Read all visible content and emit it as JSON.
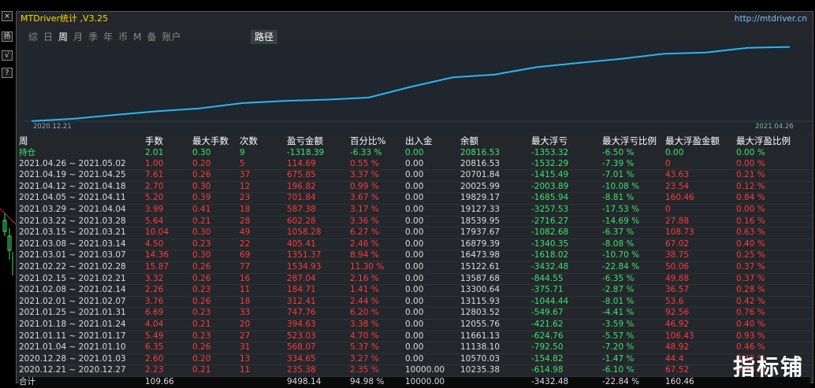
{
  "app": {
    "title": "MTDriver统计 ,V3.25",
    "url": "http://mtdriver.cn"
  },
  "left_buttons": [
    "×",
    "扬",
    "√",
    "?"
  ],
  "tabs": [
    "综",
    "日",
    "周",
    "月",
    "季",
    "年",
    "币",
    "M",
    "备",
    "账户"
  ],
  "active_tab": "周",
  "path_tab": "路径",
  "chart_data": {
    "type": "line",
    "x_labels": [
      "2020.12.21",
      "2021.04.26"
    ],
    "balance": [
      10235.38,
      10570.03,
      11138.1,
      11661.13,
      12055.76,
      12803.52,
      13115.93,
      13300.64,
      13587.68,
      15122.61,
      16473.98,
      16879.39,
      17937.67,
      18539.95,
      19127.33,
      19829.17,
      20025.99,
      20701.84,
      20816.53
    ],
    "color": "#29b6f6"
  },
  "table": {
    "headers": [
      "周",
      "手数",
      "最大手数",
      "次数",
      "盈亏金额",
      "百分比%",
      "出入金",
      "余额",
      "最大浮亏",
      "最大浮亏比例",
      "最大浮盈金额",
      "最大浮盈比例"
    ],
    "holding": [
      "持仓",
      "2.01",
      "0.30",
      "9",
      "-1318.39",
      "-6.33 %",
      "0.00",
      "20816.53",
      "-1353.32",
      "-6.50 %",
      "0.00",
      "0.00 %"
    ],
    "rows": [
      [
        "2021.04.26 ~ 2021.05.02",
        "1.00",
        "0.20",
        "5",
        "114.69",
        "0.55 %",
        "0.00",
        "20816.53",
        "-1532.29",
        "-7.39 %",
        "0",
        "0.00 %"
      ],
      [
        "2021.04.19 ~ 2021.04.25",
        "7.61",
        "0.26",
        "37",
        "675.85",
        "3.37 %",
        "0.00",
        "20701.84",
        "-1415.49",
        "-7.01 %",
        "43.63",
        "0.21 %"
      ],
      [
        "2021.04.12 ~ 2021.04.18",
        "2.70",
        "0.30",
        "12",
        "196.82",
        "0.99 %",
        "0.00",
        "20025.99",
        "-2003.89",
        "-10.08 %",
        "23.54",
        "0.12 %"
      ],
      [
        "2021.04.05 ~ 2021.04.11",
        "5.20",
        "0.39",
        "23",
        "701.84",
        "3.67 %",
        "0.00",
        "19829.17",
        "-1685.94",
        "-8.81 %",
        "160.46",
        "0.84 %"
      ],
      [
        "2021.03.29 ~ 2021.04.04",
        "3.99",
        "0.41",
        "18",
        "587.38",
        "3.17 %",
        "0.00",
        "19127.33",
        "-3257.53",
        "-17.53 %",
        "0",
        "0.00 %"
      ],
      [
        "2021.03.22 ~ 2021.03.28",
        "5.64",
        "0.21",
        "28",
        "602.28",
        "3.36 %",
        "0.00",
        "18539.95",
        "-2716.27",
        "-14.69 %",
        "27.88",
        "0.16 %"
      ],
      [
        "2021.03.15 ~ 2021.03.21",
        "10.04",
        "0.30",
        "49",
        "1058.28",
        "6.27 %",
        "0.00",
        "17937.67",
        "-1082.68",
        "-6.37 %",
        "108.73",
        "0.63 %"
      ],
      [
        "2021.03.08 ~ 2021.03.14",
        "4.50",
        "0.23",
        "22",
        "405.41",
        "2.46 %",
        "0.00",
        "16879.39",
        "-1340.35",
        "-8.08 %",
        "67.02",
        "0.40 %"
      ],
      [
        "2021.03.01 ~ 2021.03.07",
        "14.36",
        "0.30",
        "69",
        "1351.37",
        "8.94 %",
        "0.00",
        "16473.98",
        "-1618.02",
        "-10.70 %",
        "38.75",
        "0.25 %"
      ],
      [
        "2021.02.22 ~ 2021.02.28",
        "15.87",
        "0.26",
        "77",
        "1534.93",
        "11.30 %",
        "0.00",
        "15122.61",
        "-3432.48",
        "-22.84 %",
        "50.06",
        "0.37 %"
      ],
      [
        "2021.02.15 ~ 2021.02.21",
        "3.32",
        "0.26",
        "16",
        "287.04",
        "2.16 %",
        "0.00",
        "13587.68",
        "-844.55",
        "-6.35 %",
        "49.88",
        "0.37 %"
      ],
      [
        "2021.02.08 ~ 2021.02.14",
        "2.26",
        "0.23",
        "11",
        "184.71",
        "1.41 %",
        "0.00",
        "13300.64",
        "-375.71",
        "-2.87 %",
        "36.57",
        "0.28 %"
      ],
      [
        "2021.02.01 ~ 2021.02.07",
        "3.76",
        "0.26",
        "18",
        "312.41",
        "2.44 %",
        "0.00",
        "13115.93",
        "-1044.44",
        "-8.01 %",
        "53.6",
        "0.42 %"
      ],
      [
        "2021.01.25 ~ 2021.01.31",
        "6.69",
        "0.23",
        "33",
        "747.76",
        "6.20 %",
        "0.00",
        "12803.52",
        "-549.67",
        "-4.41 %",
        "92.56",
        "0.76 %"
      ],
      [
        "2021.01.18 ~ 2021.01.24",
        "4.04",
        "0.21",
        "20",
        "394.63",
        "3.38 %",
        "0.00",
        "12055.76",
        "-421.62",
        "-3.59 %",
        "46.92",
        "0.40 %"
      ],
      [
        "2021.01.11 ~ 2021.01.17",
        "5.49",
        "0.23",
        "27",
        "523.03",
        "4.70 %",
        "0.00",
        "11661.13",
        "-624.76",
        "-5.57 %",
        "106.43",
        "0.93 %"
      ],
      [
        "2021.01.04 ~ 2021.01.10",
        "6.35",
        "0.26",
        "31",
        "568.07",
        "5.37 %",
        "0.00",
        "11138.10",
        "-792.50",
        "-7.20 %",
        "48.92",
        "0.46 %"
      ],
      [
        "2020.12.28 ~ 2021.01.03",
        "2.60",
        "0.20",
        "13",
        "334.65",
        "3.27 %",
        "0.00",
        "10570.03",
        "-154.82",
        "-1.47 %",
        "44.4",
        "0.42 %"
      ],
      [
        "2020.12.21 ~ 2020.12.27",
        "2.23",
        "0.21",
        "11",
        "235.38",
        "2.35 %",
        "10000.00",
        "10235.38",
        "-614.98",
        "-6.10 %",
        "67.52",
        "0.66 %"
      ]
    ],
    "total": [
      "合计",
      "109.66",
      "",
      "",
      "9498.14",
      "94.98 %",
      "10000.00",
      "",
      "-3432.48",
      "-22.84 %",
      "160.46",
      ""
    ]
  },
  "watermark": "指标铺"
}
